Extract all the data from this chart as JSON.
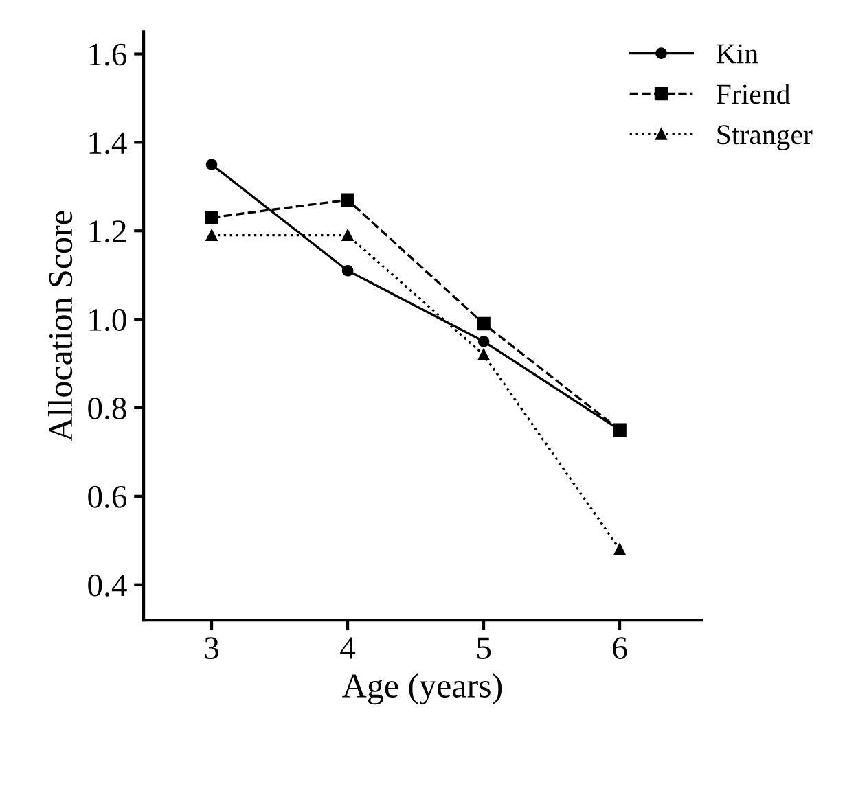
{
  "chart_data": {
    "type": "line",
    "xlabel": "Age (years)",
    "ylabel": "Allocation Score",
    "x": [
      3,
      4,
      5,
      6
    ],
    "xlim": [
      2.5,
      6.6
    ],
    "xticks": [
      3,
      4,
      5,
      6
    ],
    "ylim": [
      0.32,
      1.65
    ],
    "yticks": [
      0.4,
      0.6,
      0.8,
      {
        "value": 1,
        "label": "1.0"
      },
      1.2,
      1.4,
      1.6
    ],
    "legend": "top right",
    "grid": false,
    "series": [
      {
        "name": "Kin",
        "color": "#000000",
        "marker": "circle",
        "line_style": "solid",
        "values": [
          1.35,
          1.11,
          0.95,
          0.75
        ]
      },
      {
        "name": "Friend",
        "color": "#000000",
        "marker": "square",
        "line_style": "dashed",
        "values": [
          1.23,
          1.27,
          0.99,
          0.75
        ]
      },
      {
        "name": "Stranger",
        "color": "#000000",
        "marker": "triangle",
        "line_style": "dotted",
        "values": [
          1.19,
          1.19,
          0.92,
          0.48
        ]
      }
    ]
  }
}
